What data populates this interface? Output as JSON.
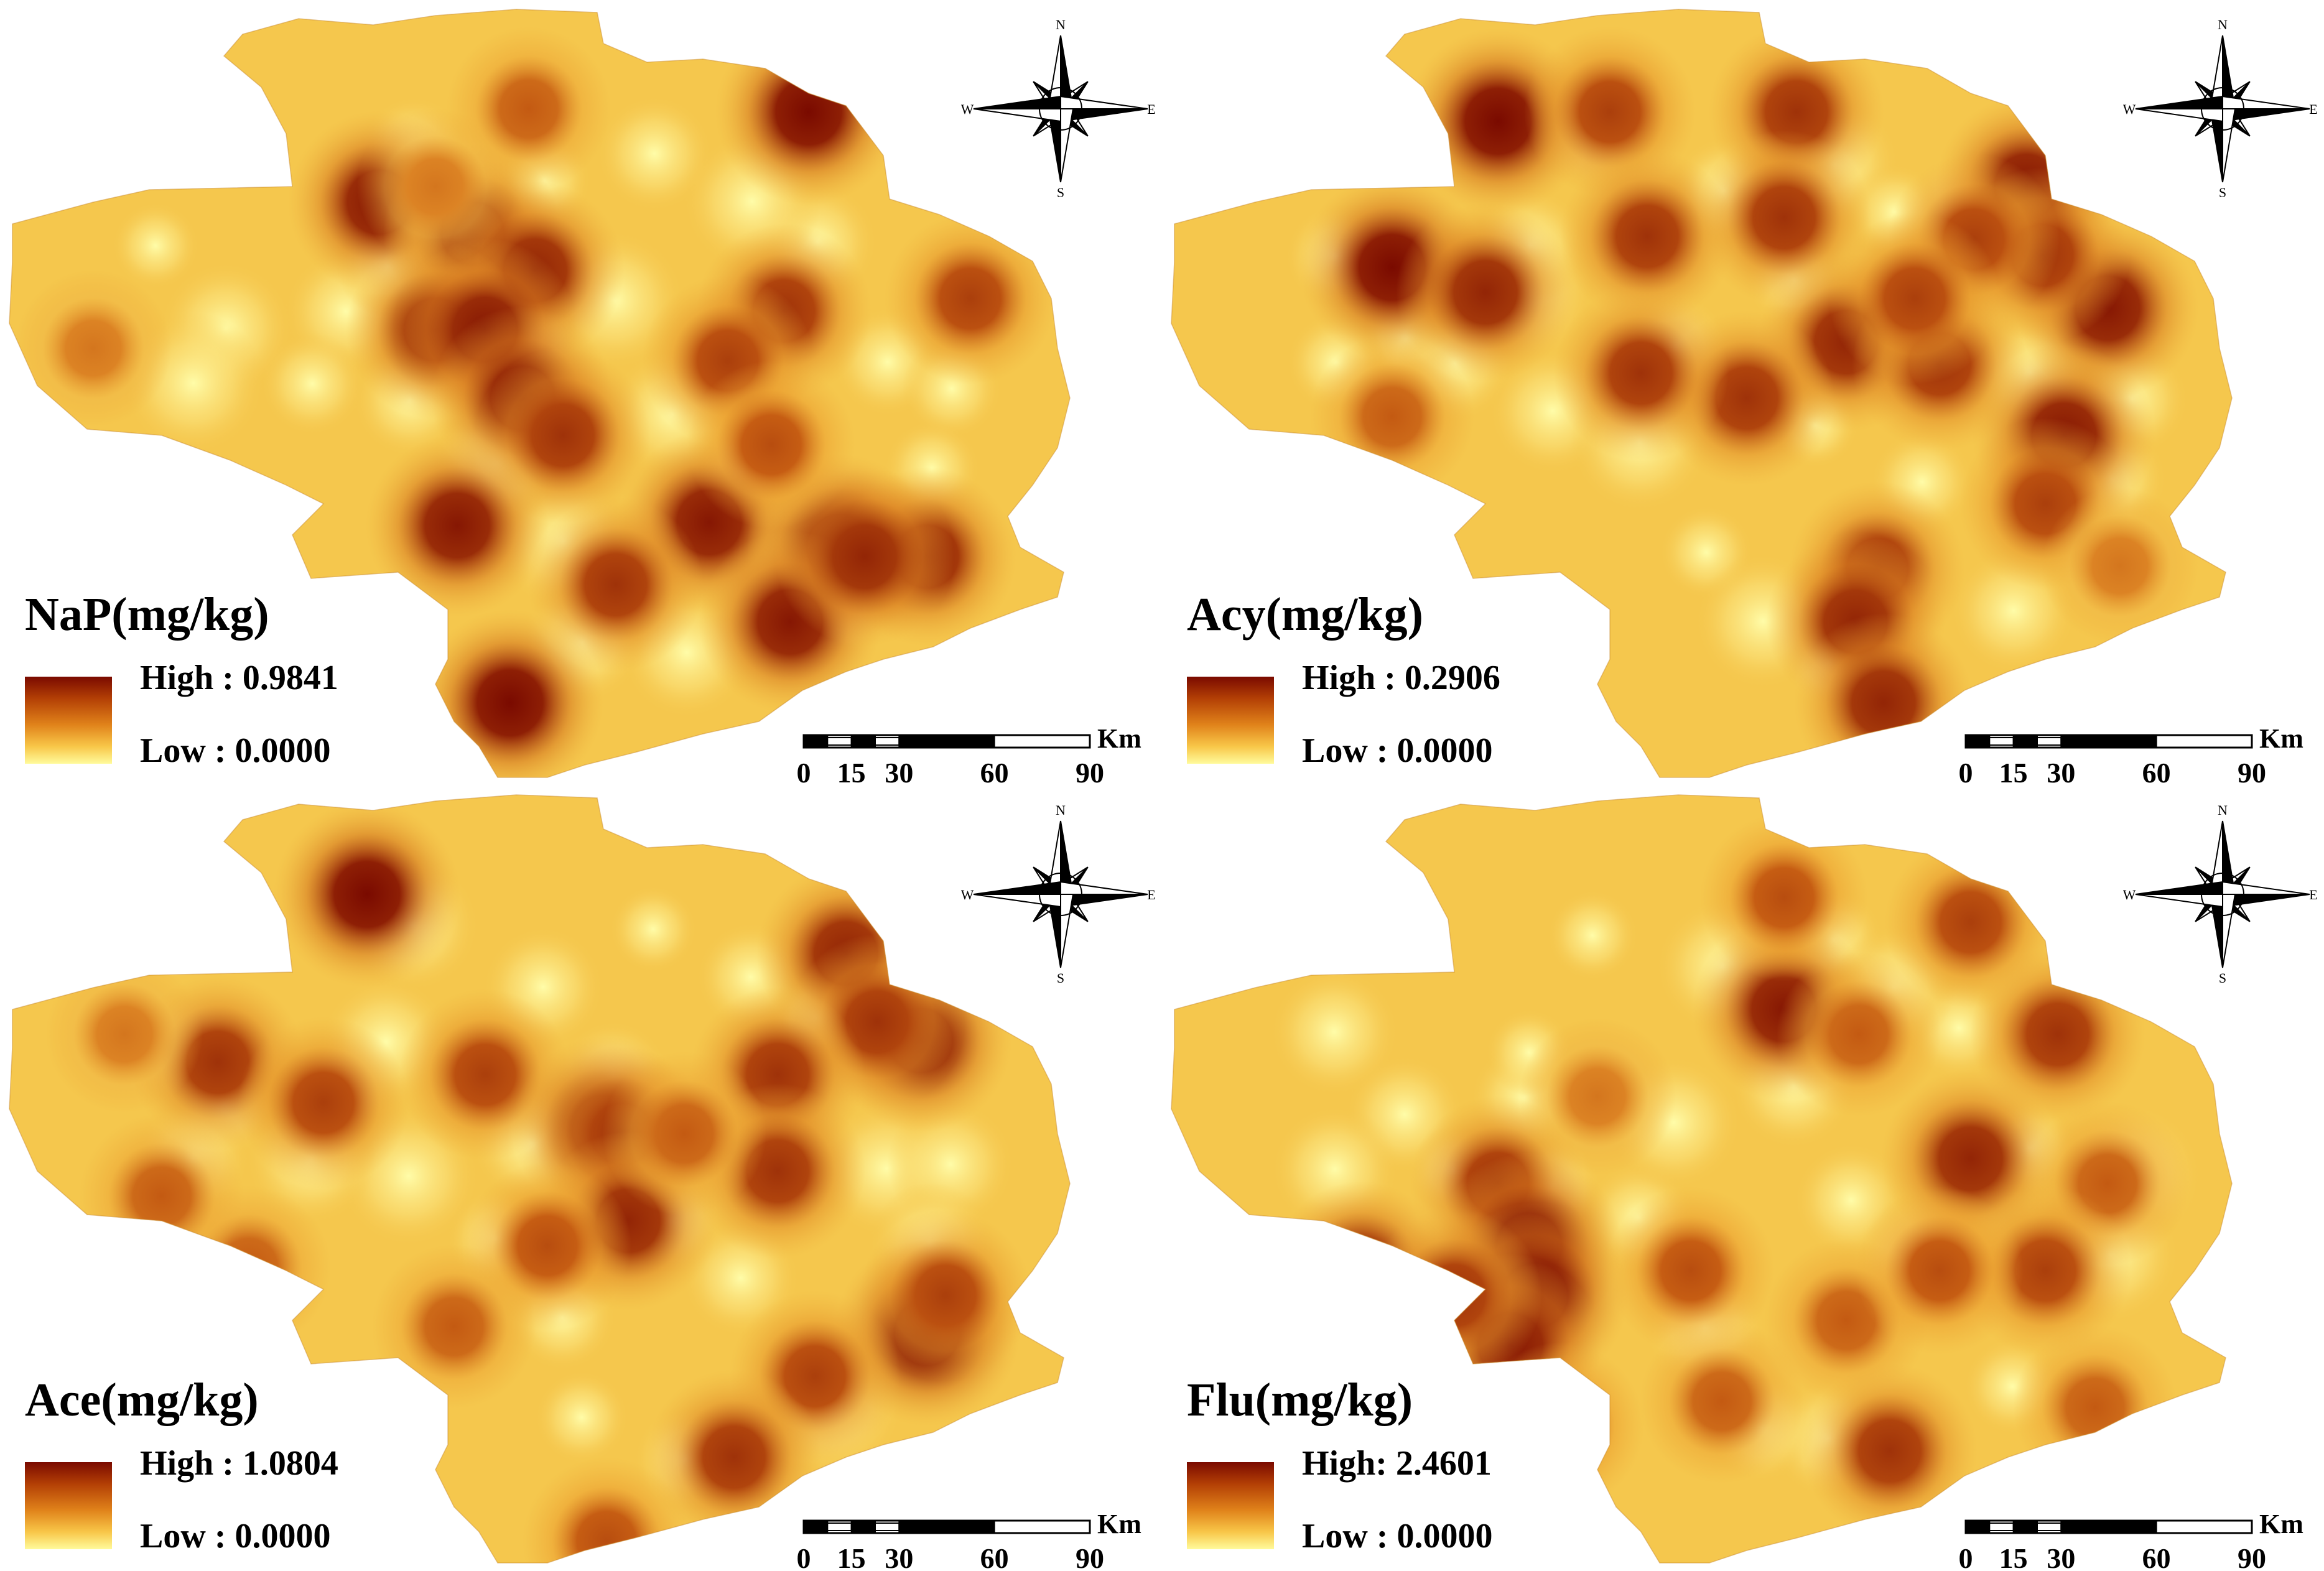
{
  "panels": [
    {
      "title": "NaP(mg/kg)",
      "legend": {
        "high": "High : 0.9841",
        "low": "Low : 0.0000"
      },
      "hotspots": [
        [
          1300,
          180,
          1.0
        ],
        [
          610,
          325,
          0.95
        ],
        [
          760,
          375,
          0.9
        ],
        [
          860,
          435,
          0.9
        ],
        [
          1260,
          500,
          0.85
        ],
        [
          1560,
          480,
          0.8
        ],
        [
          1170,
          580,
          0.8
        ],
        [
          700,
          530,
          0.9
        ],
        [
          780,
          530,
          0.95
        ],
        [
          840,
          640,
          0.95
        ],
        [
          905,
          700,
          0.85
        ],
        [
          735,
          845,
          0.95
        ],
        [
          1140,
          840,
          0.95
        ],
        [
          1350,
          880,
          1.0
        ],
        [
          1490,
          895,
          0.9
        ],
        [
          990,
          940,
          0.85
        ],
        [
          1270,
          1000,
          0.95
        ],
        [
          820,
          1130,
          1.0
        ],
        [
          150,
          560,
          0.6
        ],
        [
          850,
          175,
          0.7
        ],
        [
          1240,
          715,
          0.75
        ],
        [
          1390,
          895,
          0.9
        ],
        [
          700,
          300,
          0.6
        ]
      ]
    },
    {
      "title": "Acy(mg/kg)",
      "legend": {
        "high": "High : 0.2906",
        "low": "Low : 0.0000"
      },
      "hotspots": [
        [
          540,
          195,
          1.0
        ],
        [
          720,
          180,
          0.8
        ],
        [
          1020,
          180,
          0.85
        ],
        [
          1390,
          300,
          0.95
        ],
        [
          1520,
          495,
          0.95
        ],
        [
          1415,
          410,
          0.85
        ],
        [
          370,
          430,
          1.0
        ],
        [
          520,
          470,
          0.9
        ],
        [
          780,
          380,
          0.85
        ],
        [
          1000,
          350,
          0.85
        ],
        [
          1100,
          550,
          0.9
        ],
        [
          1250,
          585,
          0.85
        ],
        [
          1305,
          385,
          0.8
        ],
        [
          1450,
          700,
          0.95
        ],
        [
          940,
          640,
          0.85
        ],
        [
          1420,
          810,
          0.8
        ],
        [
          1150,
          915,
          0.85
        ],
        [
          1115,
          1000,
          0.9
        ],
        [
          370,
          670,
          0.7
        ],
        [
          1160,
          1130,
          0.9
        ],
        [
          1210,
          480,
          0.8
        ],
        [
          1540,
          910,
          0.6
        ],
        [
          770,
          600,
          0.85
        ]
      ]
    },
    {
      "title": "Ace(mg/kg)",
      "legend": {
        "high": "High : 1.0804",
        "low": "Low : 0.0000"
      },
      "hotspots": [
        [
          590,
          175,
          1.0
        ],
        [
          1360,
          270,
          0.9
        ],
        [
          1480,
          410,
          0.95
        ],
        [
          1410,
          380,
          0.85
        ],
        [
          350,
          445,
          0.85
        ],
        [
          520,
          510,
          0.8
        ],
        [
          780,
          465,
          0.8
        ],
        [
          970,
          550,
          0.95
        ],
        [
          1000,
          560,
          0.85
        ],
        [
          1010,
          700,
          0.9
        ],
        [
          1250,
          465,
          0.85
        ],
        [
          1250,
          620,
          0.85
        ],
        [
          1490,
          880,
          1.0
        ],
        [
          1310,
          950,
          0.8
        ],
        [
          880,
          740,
          0.75
        ],
        [
          400,
          775,
          0.7
        ],
        [
          260,
          660,
          0.7
        ],
        [
          730,
          870,
          0.7
        ],
        [
          1180,
          1080,
          0.85
        ],
        [
          975,
          1215,
          0.75
        ],
        [
          200,
          400,
          0.6
        ],
        [
          1520,
          820,
          0.8
        ],
        [
          1100,
          560,
          0.7
        ]
      ]
    },
    {
      "title": "Flu(mg/kg)",
      "legend": {
        "high": "High: 2.4601",
        "low": "Low : 0.0000"
      },
      "hotspots": [
        [
          320,
          780,
          0.9
        ],
        [
          540,
          640,
          0.85
        ],
        [
          590,
          740,
          1.0
        ],
        [
          600,
          820,
          1.0
        ],
        [
          560,
          900,
          0.95
        ],
        [
          470,
          820,
          0.85
        ],
        [
          640,
          1030,
          0.75
        ],
        [
          520,
          1060,
          0.75
        ],
        [
          315,
          1100,
          0.8
        ],
        [
          1000,
          360,
          0.95
        ],
        [
          1000,
          180,
          0.75
        ],
        [
          1440,
          400,
          0.85
        ],
        [
          1300,
          600,
          0.9
        ],
        [
          1520,
          640,
          0.7
        ],
        [
          1500,
          1000,
          0.7
        ],
        [
          1420,
          780,
          0.8
        ],
        [
          900,
          990,
          0.7
        ],
        [
          1170,
          1070,
          0.85
        ],
        [
          850,
          780,
          0.75
        ],
        [
          1100,
          860,
          0.7
        ],
        [
          1250,
          780,
          0.75
        ],
        [
          1300,
          220,
          0.8
        ],
        [
          700,
          500,
          0.6
        ],
        [
          1120,
          400,
          0.7
        ]
      ]
    }
  ],
  "compass": {
    "n": "N",
    "s": "S",
    "e": "E",
    "w": "W"
  },
  "scale": {
    "unit": "Km",
    "ticks": [
      "0",
      "15",
      "30",
      "60",
      "90"
    ]
  },
  "colors": {
    "ramp_high": "#7a0a00",
    "ramp_mid": "#e0821a",
    "ramp_low": "#fffb9c",
    "base_fill": "#f5c74d"
  }
}
